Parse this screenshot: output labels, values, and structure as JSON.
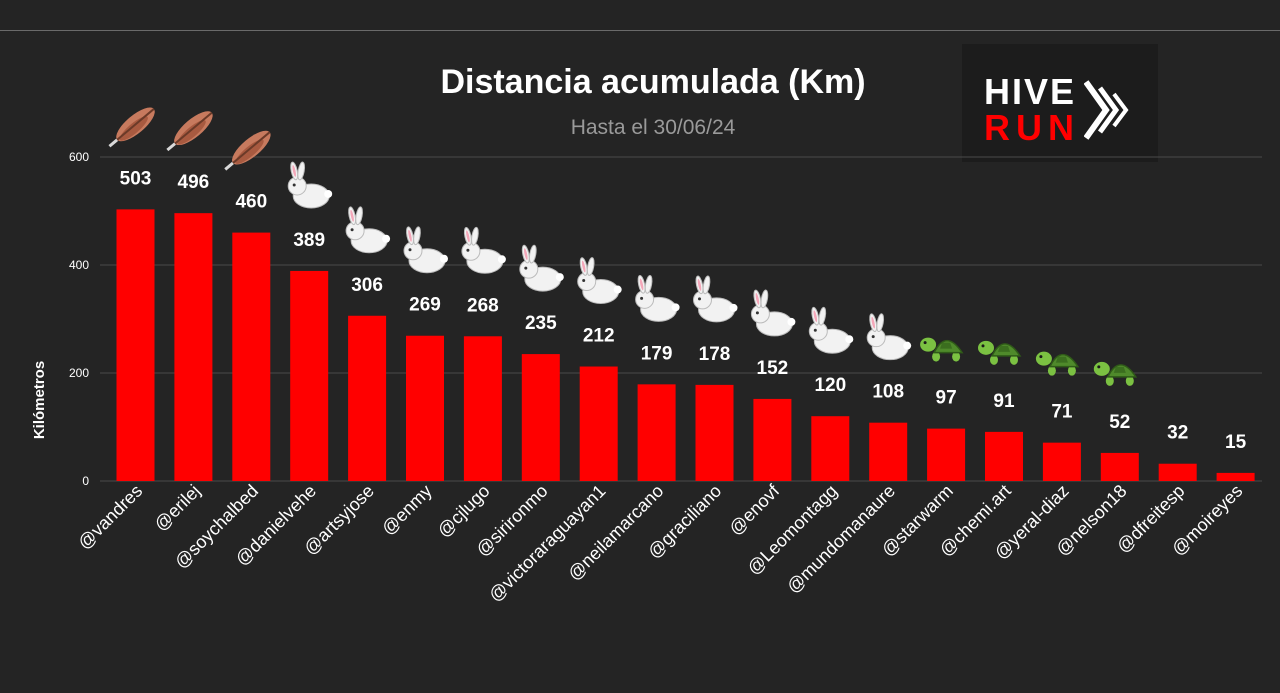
{
  "chart_data": {
    "type": "bar",
    "title": "Distancia acumulada (Km)",
    "subtitle": "Hasta el 30/06/24",
    "xlabel": "",
    "ylabel": "Kilómetros",
    "ylim": [
      0,
      600
    ],
    "yticks": [
      0,
      200,
      400,
      600
    ],
    "grid": true,
    "categories": [
      "@vandres",
      "@erilej",
      "@soychalbed",
      "@danielvehe",
      "@artsyjose",
      "@enmy",
      "@cjlugo",
      "@sirironmo",
      "@victoraraguayan1",
      "@neilamarcano",
      "@graciliano",
      "@enovf",
      "@Leomontagg",
      "@mundomanaure",
      "@starwarm",
      "@chemi.art",
      "@yeral-diaz",
      "@nelson18",
      "@dfreitesp",
      "@moireyes"
    ],
    "values": [
      503,
      496,
      460,
      389,
      306,
      269,
      268,
      235,
      212,
      179,
      178,
      152,
      120,
      108,
      97,
      91,
      71,
      52,
      32,
      15
    ],
    "badges": [
      "feather",
      "feather",
      "feather",
      "rabbit",
      "rabbit",
      "rabbit",
      "rabbit",
      "rabbit",
      "rabbit",
      "rabbit",
      "rabbit",
      "rabbit",
      "rabbit",
      "rabbit",
      "turtle",
      "turtle",
      "turtle",
      "turtle",
      "",
      ""
    ],
    "bar_color": "#ff0000"
  },
  "logo": {
    "line1": "HIVE",
    "line2": "RUN",
    "accent": "#ff0000"
  },
  "colors": {
    "background": "#242424",
    "text": "#ffffff",
    "subtitle": "#9a9a9a",
    "grid": "#4a4a4a"
  }
}
